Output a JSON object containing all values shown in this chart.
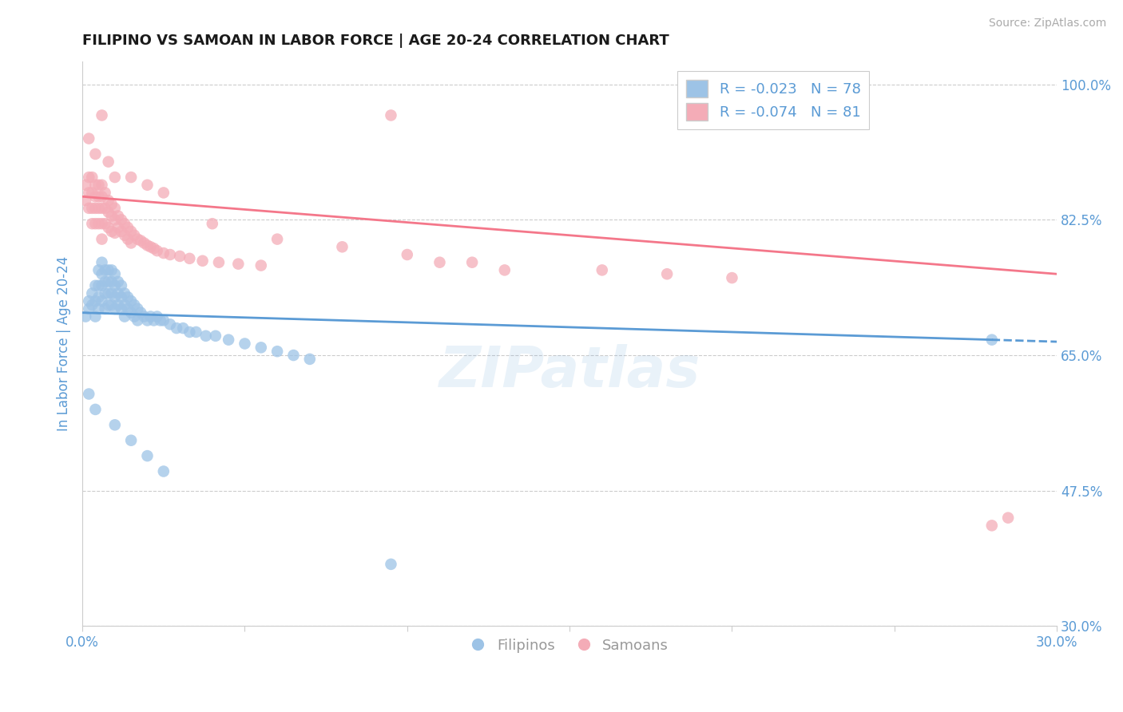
{
  "title": "FILIPINO VS SAMOAN IN LABOR FORCE | AGE 20-24 CORRELATION CHART",
  "source": "Source: ZipAtlas.com",
  "ylabel": "In Labor Force | Age 20-24",
  "xlim": [
    0.0,
    0.3
  ],
  "ylim": [
    0.3,
    1.03
  ],
  "yticks": [
    0.3,
    0.475,
    0.65,
    0.825,
    1.0
  ],
  "yticklabels": [
    "30.0%",
    "47.5%",
    "65.0%",
    "82.5%",
    "100.0%"
  ],
  "grid_color": "#cccccc",
  "background_color": "#ffffff",
  "axis_color": "#5b9bd5",
  "legend_r1": "R = -0.023",
  "legend_n1": "N = 78",
  "legend_r2": "R = -0.074",
  "legend_n2": "N = 81",
  "legend_label1": "Filipinos",
  "legend_label2": "Samoans",
  "filipino_color": "#9dc3e6",
  "samoan_color": "#f4acb7",
  "filipino_line_color": "#5b9bd5",
  "samoan_line_color": "#f4778a",
  "filipino_x": [
    0.001,
    0.002,
    0.002,
    0.003,
    0.003,
    0.004,
    0.004,
    0.004,
    0.005,
    0.005,
    0.005,
    0.005,
    0.006,
    0.006,
    0.006,
    0.006,
    0.007,
    0.007,
    0.007,
    0.007,
    0.008,
    0.008,
    0.008,
    0.008,
    0.009,
    0.009,
    0.009,
    0.009,
    0.01,
    0.01,
    0.01,
    0.01,
    0.011,
    0.011,
    0.011,
    0.012,
    0.012,
    0.012,
    0.013,
    0.013,
    0.013,
    0.014,
    0.014,
    0.015,
    0.015,
    0.016,
    0.016,
    0.017,
    0.017,
    0.018,
    0.019,
    0.02,
    0.021,
    0.022,
    0.023,
    0.024,
    0.025,
    0.027,
    0.029,
    0.031,
    0.033,
    0.035,
    0.038,
    0.041,
    0.045,
    0.05,
    0.055,
    0.06,
    0.065,
    0.07,
    0.002,
    0.004,
    0.01,
    0.015,
    0.02,
    0.025,
    0.28,
    0.095
  ],
  "filipino_y": [
    0.7,
    0.72,
    0.71,
    0.73,
    0.715,
    0.74,
    0.72,
    0.7,
    0.76,
    0.74,
    0.725,
    0.71,
    0.77,
    0.755,
    0.74,
    0.72,
    0.76,
    0.745,
    0.73,
    0.71,
    0.76,
    0.745,
    0.73,
    0.715,
    0.76,
    0.745,
    0.73,
    0.715,
    0.755,
    0.74,
    0.725,
    0.71,
    0.745,
    0.73,
    0.715,
    0.74,
    0.725,
    0.71,
    0.73,
    0.715,
    0.7,
    0.725,
    0.71,
    0.72,
    0.705,
    0.715,
    0.7,
    0.71,
    0.695,
    0.705,
    0.7,
    0.695,
    0.7,
    0.695,
    0.7,
    0.695,
    0.695,
    0.69,
    0.685,
    0.685,
    0.68,
    0.68,
    0.675,
    0.675,
    0.67,
    0.665,
    0.66,
    0.655,
    0.65,
    0.645,
    0.6,
    0.58,
    0.56,
    0.54,
    0.52,
    0.5,
    0.67,
    0.38
  ],
  "samoan_x": [
    0.001,
    0.001,
    0.002,
    0.002,
    0.002,
    0.003,
    0.003,
    0.003,
    0.003,
    0.004,
    0.004,
    0.004,
    0.004,
    0.005,
    0.005,
    0.005,
    0.005,
    0.006,
    0.006,
    0.006,
    0.006,
    0.006,
    0.007,
    0.007,
    0.007,
    0.008,
    0.008,
    0.008,
    0.009,
    0.009,
    0.009,
    0.01,
    0.01,
    0.01,
    0.011,
    0.011,
    0.012,
    0.012,
    0.013,
    0.013,
    0.014,
    0.014,
    0.015,
    0.015,
    0.016,
    0.017,
    0.018,
    0.019,
    0.02,
    0.021,
    0.022,
    0.023,
    0.025,
    0.027,
    0.03,
    0.033,
    0.037,
    0.042,
    0.048,
    0.055,
    0.002,
    0.004,
    0.006,
    0.008,
    0.01,
    0.015,
    0.02,
    0.025,
    0.04,
    0.06,
    0.08,
    0.1,
    0.12,
    0.16,
    0.18,
    0.2,
    0.28,
    0.285,
    0.095,
    0.11,
    0.13
  ],
  "samoan_y": [
    0.87,
    0.85,
    0.88,
    0.86,
    0.84,
    0.88,
    0.86,
    0.84,
    0.82,
    0.87,
    0.855,
    0.84,
    0.82,
    0.87,
    0.855,
    0.84,
    0.82,
    0.87,
    0.855,
    0.84,
    0.82,
    0.8,
    0.86,
    0.84,
    0.82,
    0.85,
    0.835,
    0.815,
    0.845,
    0.83,
    0.81,
    0.84,
    0.825,
    0.808,
    0.83,
    0.815,
    0.825,
    0.81,
    0.82,
    0.805,
    0.815,
    0.8,
    0.81,
    0.795,
    0.805,
    0.8,
    0.798,
    0.795,
    0.792,
    0.79,
    0.788,
    0.785,
    0.782,
    0.78,
    0.778,
    0.775,
    0.772,
    0.77,
    0.768,
    0.766,
    0.93,
    0.91,
    0.96,
    0.9,
    0.88,
    0.88,
    0.87,
    0.86,
    0.82,
    0.8,
    0.79,
    0.78,
    0.77,
    0.76,
    0.755,
    0.75,
    0.43,
    0.44,
    0.96,
    0.77,
    0.76
  ],
  "fil_line_x0": 0.0,
  "fil_line_y0": 0.705,
  "fil_line_x1": 0.28,
  "fil_line_y1": 0.67,
  "sam_line_x0": 0.0,
  "sam_line_y0": 0.855,
  "sam_line_x1": 0.3,
  "sam_line_y1": 0.755
}
